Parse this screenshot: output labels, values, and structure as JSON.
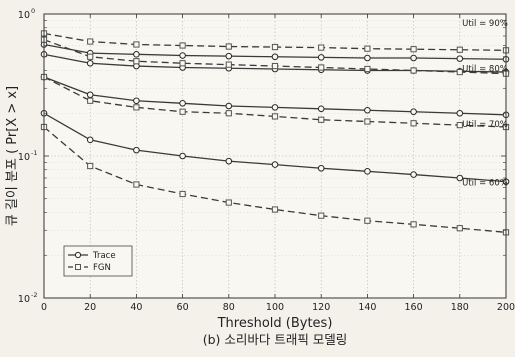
{
  "chart_data": {
    "type": "line",
    "xlabel": "Threshold (Bytes)",
    "ylabel": "큐 길이 분포 ( Pr[X > x]",
    "caption": "(b) 소리바다 트래픽 모델링",
    "x_scale": "linear",
    "y_scale": "log",
    "xlim": [
      0,
      200
    ],
    "ylim": [
      0.01,
      1
    ],
    "x_ticks": [
      0,
      20,
      40,
      60,
      80,
      100,
      120,
      140,
      160,
      180,
      200
    ],
    "x_tick_labels": [
      "0",
      "20",
      "40",
      "60",
      "80",
      "100",
      "120",
      "140",
      "160",
      "180",
      "200"
    ],
    "y_ticks": [
      0.01,
      0.1,
      1
    ],
    "y_tick_labels": [
      {
        "base": "10",
        "exp": "-2"
      },
      {
        "base": "10",
        "exp": "-1"
      },
      {
        "base": "10",
        "exp": "0"
      }
    ],
    "grid": true,
    "legend_position": "bottom-left",
    "legend": [
      {
        "label": "Trace",
        "marker": "circle",
        "dash": "solid"
      },
      {
        "label": "FGN",
        "marker": "square",
        "dash": "dashed"
      }
    ],
    "annotations": [
      {
        "text": "Util = 90%",
        "x": 181,
        "y": 0.82
      },
      {
        "text": "Util = 80%",
        "x": 181,
        "y": 0.395
      },
      {
        "text": "Util = 70%",
        "x": 181,
        "y": 0.16
      },
      {
        "text": "Util = 60%",
        "x": 181,
        "y": 0.062
      }
    ],
    "x": [
      0,
      20,
      40,
      60,
      80,
      100,
      120,
      140,
      160,
      180,
      200
    ],
    "series": [
      {
        "model": "Trace",
        "util": "90%",
        "marker": "circle",
        "dash": "solid",
        "values": [
          0.61,
          0.53,
          0.52,
          0.51,
          0.505,
          0.5,
          0.495,
          0.49,
          0.49,
          0.485,
          0.48
        ]
      },
      {
        "model": "FGN",
        "util": "90%",
        "marker": "square",
        "dash": "dashed",
        "values": [
          0.73,
          0.64,
          0.61,
          0.6,
          0.59,
          0.585,
          0.58,
          0.57,
          0.565,
          0.56,
          0.555
        ]
      },
      {
        "model": "Trace",
        "util": "80%",
        "marker": "circle",
        "dash": "solid",
        "values": [
          0.52,
          0.45,
          0.43,
          0.42,
          0.415,
          0.41,
          0.405,
          0.4,
          0.4,
          0.395,
          0.39
        ]
      },
      {
        "model": "FGN",
        "util": "80%",
        "marker": "square",
        "dash": "dashed",
        "values": [
          0.66,
          0.5,
          0.465,
          0.45,
          0.44,
          0.43,
          0.42,
          0.41,
          0.4,
          0.39,
          0.38
        ]
      },
      {
        "model": "Trace",
        "util": "70%",
        "marker": "circle",
        "dash": "solid",
        "values": [
          0.36,
          0.27,
          0.245,
          0.235,
          0.225,
          0.22,
          0.215,
          0.21,
          0.205,
          0.2,
          0.195
        ]
      },
      {
        "model": "FGN",
        "util": "70%",
        "marker": "square",
        "dash": "dashed",
        "values": [
          0.36,
          0.245,
          0.22,
          0.205,
          0.2,
          0.19,
          0.18,
          0.175,
          0.17,
          0.165,
          0.16
        ]
      },
      {
        "model": "Trace",
        "util": "60%",
        "marker": "circle",
        "dash": "solid",
        "values": [
          0.2,
          0.13,
          0.11,
          0.1,
          0.092,
          0.087,
          0.082,
          0.078,
          0.074,
          0.07,
          0.066
        ]
      },
      {
        "model": "FGN",
        "util": "60%",
        "marker": "square",
        "dash": "dashed",
        "values": [
          0.16,
          0.085,
          0.063,
          0.054,
          0.047,
          0.042,
          0.038,
          0.035,
          0.033,
          0.031,
          0.029
        ]
      }
    ]
  }
}
